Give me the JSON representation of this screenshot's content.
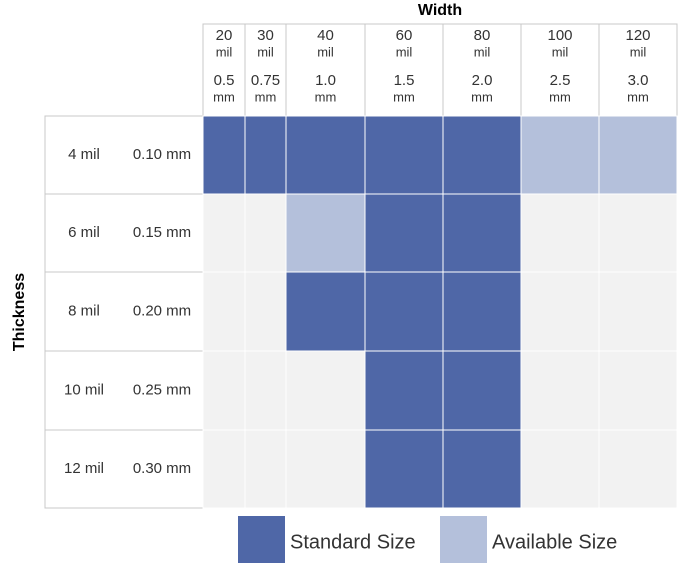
{
  "title": "Width",
  "side_title": "Thickness",
  "columns": [
    {
      "mil": "20",
      "mil_unit": "mil",
      "mm": "0.5",
      "mm_unit": "mm"
    },
    {
      "mil": "30",
      "mil_unit": "mil",
      "mm": "0.75",
      "mm_unit": "mm"
    },
    {
      "mil": "40",
      "mil_unit": "mil",
      "mm": "1.0",
      "mm_unit": "mm"
    },
    {
      "mil": "60",
      "mil_unit": "mil",
      "mm": "1.5",
      "mm_unit": "mm"
    },
    {
      "mil": "80",
      "mil_unit": "mil",
      "mm": "2.0",
      "mm_unit": "mm"
    },
    {
      "mil": "100",
      "mil_unit": "mil",
      "mm": "2.5",
      "mm_unit": "mm"
    },
    {
      "mil": "120",
      "mil_unit": "mil",
      "mm": "3.0",
      "mm_unit": "mm"
    }
  ],
  "rows": [
    {
      "mil": "4 mil",
      "mm": "0.10 mm"
    },
    {
      "mil": "6 mil",
      "mm": "0.15 mm"
    },
    {
      "mil": "8 mil",
      "mm": "0.20 mm"
    },
    {
      "mil": "10 mil",
      "mm": "0.25 mm"
    },
    {
      "mil": "12 mil",
      "mm": "0.30 mm"
    }
  ],
  "cells": [
    [
      0,
      0,
      0,
      0,
      0,
      1,
      1
    ],
    [
      null,
      null,
      1,
      0,
      0,
      null,
      null
    ],
    [
      null,
      null,
      0,
      0,
      0,
      null,
      null
    ],
    [
      null,
      null,
      null,
      0,
      0,
      null,
      null
    ],
    [
      null,
      null,
      null,
      0,
      0,
      null,
      null
    ]
  ],
  "empty_color": "#f2f2f2",
  "legend": [
    {
      "label": "Standard Size",
      "color": "#4f67a7"
    },
    {
      "label": "Available Size",
      "color": "#b4c0db"
    }
  ]
}
